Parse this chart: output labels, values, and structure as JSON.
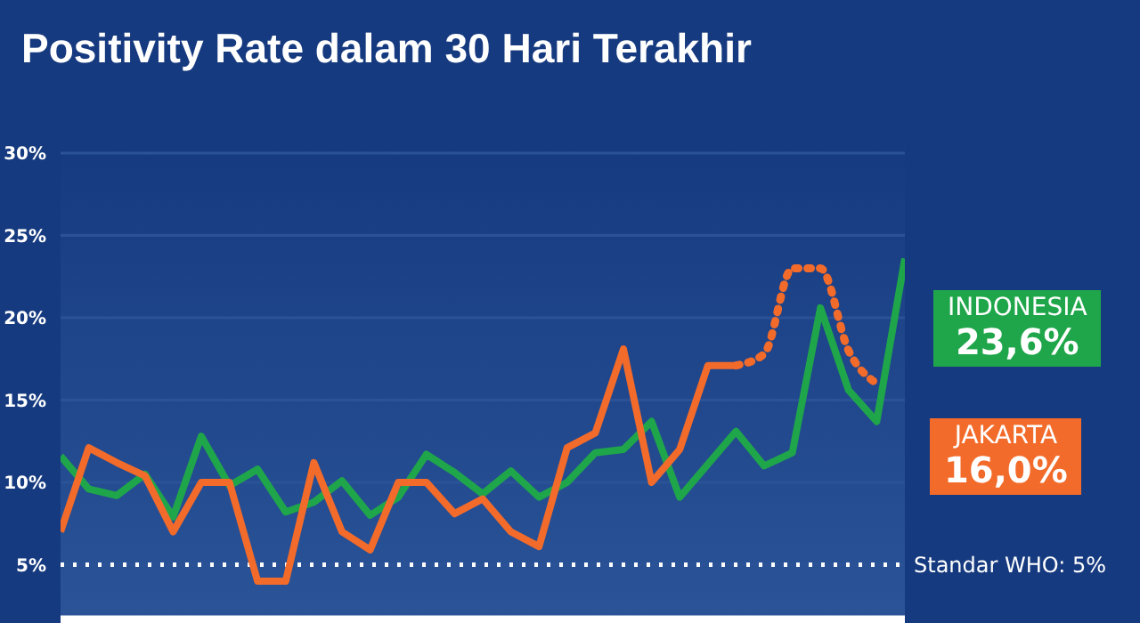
{
  "chart_data": {
    "type": "line",
    "title": "Positivity Rate dalam 30 Hari Terakhir",
    "categories": [
      null,
      null,
      null,
      null,
      null,
      null,
      null,
      null,
      null,
      null,
      null,
      null,
      null,
      null,
      null,
      null,
      null,
      null,
      null,
      null,
      null,
      null,
      null,
      null,
      null,
      null,
      null,
      null,
      null,
      null,
      null
    ],
    "series": [
      {
        "name": "INDONESIA",
        "color": "#1fa64a",
        "values": [
          11.6,
          9.6,
          9.2,
          10.5,
          7.9,
          12.8,
          9.8,
          10.8,
          8.2,
          8.8,
          10.1,
          8.0,
          9.1,
          11.7,
          10.6,
          9.3,
          10.7,
          9.1,
          10.0,
          11.8,
          12.0,
          13.7,
          9.1,
          11.1,
          13.1,
          11.0,
          11.8,
          20.6,
          15.6,
          13.7,
          23.6
        ]
      },
      {
        "name": "JAKARTA",
        "color": "#f26b2a",
        "values": [
          7.0,
          12.1,
          11.2,
          10.4,
          7.0,
          10.0,
          10.0,
          4.0,
          4.0,
          11.2,
          7.0,
          5.9,
          10.0,
          10.0,
          8.1,
          9.0,
          7.0,
          6.1,
          12.1,
          13.0,
          18.1,
          10.0,
          12.0,
          17.1,
          17.1,
          null,
          null,
          null,
          null,
          null,
          null
        ]
      },
      {
        "color": "#f26b2a",
        "line_style": "dotted",
        "values": [
          null,
          null,
          null,
          null,
          null,
          null,
          null,
          null,
          null,
          null,
          null,
          null,
          null,
          null,
          null,
          null,
          null,
          null,
          null,
          null,
          null,
          null,
          null,
          null,
          17.1,
          17.8,
          23.0,
          23.0,
          18.0,
          16.0,
          null
        ]
      }
    ],
    "annotations": [
      "23,6%",
      "16,0%"
    ],
    "ylim": [
      2,
      30
    ],
    "yticks": [
      {
        "value": 5,
        "label": "5%"
      },
      {
        "value": 10,
        "label": "10%"
      },
      {
        "value": 15,
        "label": "15%"
      },
      {
        "value": 20,
        "label": "20%"
      },
      {
        "value": 25,
        "label": "25%"
      },
      {
        "value": 30,
        "label": "30%"
      }
    ],
    "ref_lines": [
      {
        "axis": "y",
        "value": 5,
        "label": "Standar WHO: 5%",
        "color": "#ffffff",
        "line_style": "dotted"
      }
    ],
    "grid": "y",
    "tick_labels": "y",
    "marker": "none",
    "line_style": "solid"
  }
}
